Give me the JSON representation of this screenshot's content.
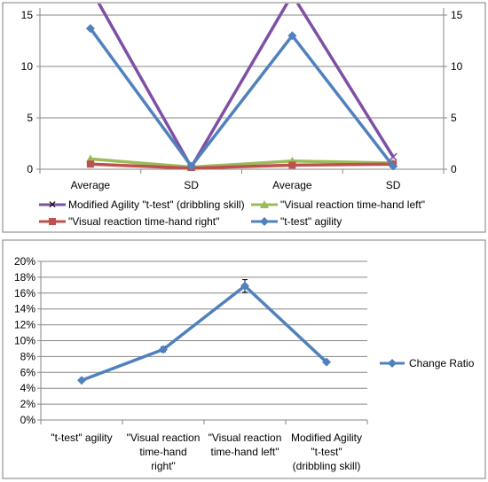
{
  "chart_data": [
    {
      "type": "line",
      "title": "",
      "categories": [
        "Average",
        "SD",
        "Average",
        "SD"
      ],
      "ylim": [
        0,
        15
      ],
      "y2lim": [
        0,
        15
      ],
      "yticks": [
        "0",
        "5",
        "10",
        "15"
      ],
      "y2ticks": [
        "0",
        "5",
        "10",
        "15"
      ],
      "grid": true,
      "legend_position": "bottom",
      "series": [
        {
          "name": "Modified Agility \"t-test\" (dribbling skill)",
          "values": [
            17.6,
            0.2,
            17.0,
            1.2
          ],
          "color": "#7f4fa4",
          "marker": "x"
        },
        {
          "name": "\"Visual  reaction time-hand left\"",
          "values": [
            1.0,
            0.2,
            0.8,
            0.6
          ],
          "color": "#9bbb59",
          "marker": "triangle"
        },
        {
          "name": "\"Visual  reaction time-hand right\"",
          "values": [
            0.5,
            0.1,
            0.4,
            0.5
          ],
          "color": "#c0504d",
          "marker": "square"
        },
        {
          "name": "\"t-test\" agility",
          "values": [
            13.7,
            0.3,
            13.0,
            0.3
          ],
          "color": "#4f81bd",
          "marker": "diamond"
        }
      ]
    },
    {
      "type": "line",
      "title": "",
      "categories": [
        "\"t-test\" agility",
        "\"Visual  reaction time-hand right\"",
        "\"Visual  reaction time-hand left\"",
        "Modified Agility \"t-test\" (dribbling skill)"
      ],
      "ylim": [
        0,
        0.2
      ],
      "yticks": [
        "0%",
        "2%",
        "4%",
        "6%",
        "8%",
        "10%",
        "12%",
        "14%",
        "16%",
        "18%",
        "20%"
      ],
      "grid": true,
      "legend_position": "right",
      "series": [
        {
          "name": "Change Ratio",
          "values": [
            0.05,
            0.089,
            0.169,
            0.073
          ],
          "errors": [
            0.0,
            0.003,
            0.008,
            0.0
          ],
          "color": "#4f81bd",
          "marker": "diamond"
        }
      ]
    }
  ]
}
